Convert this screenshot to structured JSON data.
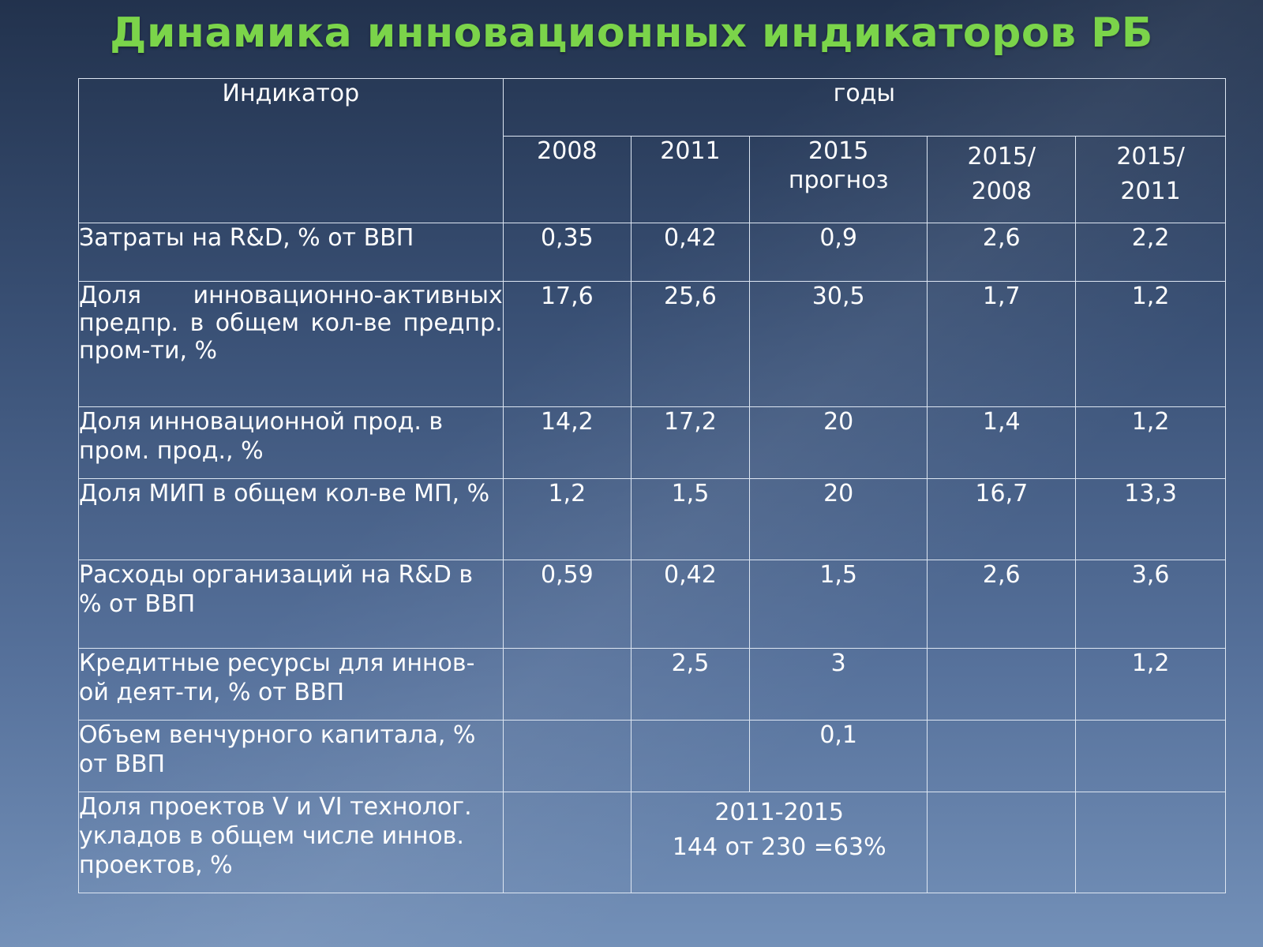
{
  "title": "Динамика инновационных индикаторов РБ",
  "header": {
    "indicator": "Индикатор",
    "years": "годы",
    "cols": [
      {
        "line1": "2008",
        "line2": ""
      },
      {
        "line1": "2011",
        "line2": ""
      },
      {
        "line1": "2015",
        "line2": "прогноз"
      },
      {
        "line1": "2015/",
        "line2": "2008"
      },
      {
        "line1": "2015/",
        "line2": "2011"
      }
    ]
  },
  "rows": [
    {
      "label": "Затраты на R&D, % от ВВП",
      "v2008": "0,35",
      "v2011": "0,42",
      "v2015": "0,9",
      "r2008": "2,6",
      "r2011": "2,2"
    },
    {
      "label": "Доля инновационно-активных предпр. в общем кол-ве предпр. пром-ти, %",
      "v2008": "17,6",
      "v2011": "25,6",
      "v2015": "30,5",
      "r2008": "1,7",
      "r2011": "1,2"
    },
    {
      "label": "Доля инновационной прод. в пром. прод., %",
      "v2008": "14,2",
      "v2011": "17,2",
      "v2015": "20",
      "r2008": "1,4",
      "r2011": "1,2"
    },
    {
      "label": "Доля  МИП в общем кол-ве  МП, %",
      "v2008": "1,2",
      "v2011": "1,5",
      "v2015": "20",
      "r2008": "16,7",
      "r2011": "13,3"
    },
    {
      "label": "Расходы организаций на R&D в % от ВВП",
      "v2008": "0,59",
      "v2011": "0,42",
      "v2015": "1,5",
      "r2008": "2,6",
      "r2011": "3,6"
    },
    {
      "label": "Кредитные ресурсы для иннов-ой деят-ти, % от ВВП",
      "v2008": "",
      "v2011": "2,5",
      "v2015": "3",
      "r2008": "",
      "r2011": "1,2"
    },
    {
      "label": "Объем венчурного капитала, % от ВВП",
      "v2008": "",
      "v2011": "",
      "v2015": "0,1",
      "r2008": "",
      "r2011": ""
    },
    {
      "label": "Доля проектов V и VI технолог. укладов в общем числе иннов. проектов,  %",
      "v2008": "",
      "merged_line1": "2011-2015",
      "merged_line2": "144  от 230 =63%",
      "r2008": "",
      "r2011": ""
    }
  ]
}
